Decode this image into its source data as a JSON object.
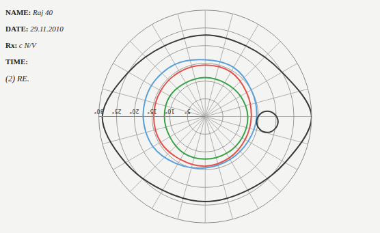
{
  "header": {
    "fields": [
      {
        "label": "NAME:",
        "value": "Raj 40"
      },
      {
        "label": "DATE:",
        "value": "29.11.2010"
      },
      {
        "label": "Rx:",
        "value": "c N/V"
      },
      {
        "label": "TIME:"
      }
    ],
    "note": "(2) RE."
  },
  "chart_data": {
    "type": "polar",
    "grid": true,
    "rlim": [
      0,
      30
    ],
    "rticks": [
      {
        "value": 5,
        "label": "5°"
      },
      {
        "value": 10,
        "label": "10°"
      },
      {
        "value": 15,
        "label": "15°"
      },
      {
        "value": 20,
        "label": "20°"
      },
      {
        "value": 25,
        "label": "25°"
      },
      {
        "value": 30,
        "label": "30°"
      }
    ],
    "thetaticks": [
      0,
      15,
      30,
      45,
      60,
      75,
      90,
      105,
      120,
      135,
      150,
      165,
      180,
      195,
      210,
      225,
      240,
      255,
      270,
      285,
      300,
      315,
      330,
      345
    ],
    "series": [
      {
        "color": "#3a3a3a",
        "theta": [
          0,
          30,
          60,
          90,
          120,
          150,
          180,
          210,
          240,
          270,
          300,
          330,
          360
        ],
        "values": [
          30,
          25,
          23,
          23,
          23,
          25,
          29,
          26,
          24,
          24,
          24,
          26,
          30
        ]
      },
      {
        "color": "#5aa0d8",
        "theta": [
          0,
          30,
          60,
          90,
          120,
          150,
          180,
          210,
          240,
          270,
          300,
          330,
          360
        ],
        "values": [
          14.5,
          15,
          16,
          16,
          17,
          17.5,
          17.5,
          17,
          15.5,
          14.5,
          14,
          14,
          14.5
        ]
      },
      {
        "color": "#e0524a",
        "theta": [
          0,
          30,
          60,
          90,
          120,
          150,
          180,
          210,
          240,
          270,
          300,
          330,
          360
        ],
        "values": [
          13,
          13.5,
          14.5,
          14.5,
          14.5,
          14.5,
          14.5,
          14.5,
          14,
          14,
          13.5,
          13,
          13
        ]
      },
      {
        "color": "#3aa04a",
        "theta": [
          0,
          30,
          60,
          90,
          120,
          150,
          180,
          210,
          240,
          270,
          300,
          330,
          360
        ],
        "values": [
          12,
          11.5,
          11,
          11,
          11,
          11.5,
          11.5,
          11.5,
          12,
          12,
          12,
          12,
          12
        ]
      },
      {
        "color": "#3a3a3a",
        "theta": [
          -4.2,
          1.8,
          4.9,
          2.2,
          -5.9,
          -13.2,
          -14.4,
          -10.4,
          -4.2
        ],
        "values": [
          20.6,
          19.6,
          17.6,
          15.4,
          14.6,
          15.8,
          18.1,
          19.9,
          20.6
        ]
      }
    ]
  }
}
